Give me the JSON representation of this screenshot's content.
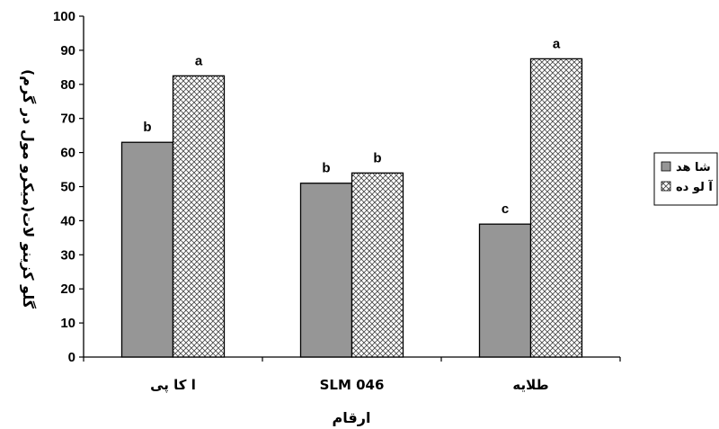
{
  "chart_data": {
    "type": "bar",
    "categories": [
      "ا کا پی",
      "SLM 046",
      "طلایه"
    ],
    "series": [
      {
        "name": "شا هد",
        "values": [
          63,
          51,
          39
        ],
        "labels": [
          "b",
          "b",
          "c"
        ],
        "color": "#969696",
        "pattern": "solid"
      },
      {
        "name": "آ لو ده",
        "values": [
          82.5,
          54,
          87.5
        ],
        "labels": [
          "a",
          "b",
          "a"
        ],
        "color": "#ffffff",
        "pattern": "crosshatch"
      }
    ],
    "xlabel": "ارقام",
    "ylabel": "گلو کزینو لات(میکرو مول در گرم)",
    "ylim": [
      0,
      100
    ],
    "yticks": [
      "0",
      "10",
      "20",
      "30",
      "40",
      "50",
      "60",
      "70",
      "80",
      "90",
      "100"
    ],
    "grid": false,
    "legend_position": "right"
  }
}
